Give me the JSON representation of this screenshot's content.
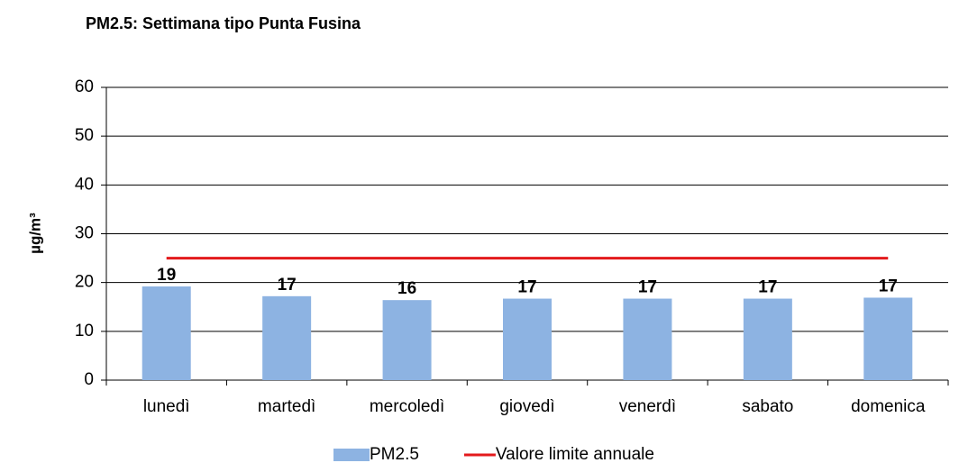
{
  "chart_data": {
    "type": "bar",
    "title": "PM2.5: Settimana tipo Punta Fusina",
    "y_label": "µg/m³",
    "categories": [
      "lunedì",
      "martedì",
      "mercoledì",
      "giovedì",
      "venerdì",
      "sabato",
      "domenica"
    ],
    "series": [
      {
        "name": "PM2.5",
        "type": "bar",
        "color": "#8db3e2",
        "values": [
          19.2,
          17.2,
          16.4,
          16.7,
          16.7,
          16.7,
          16.9
        ],
        "value_labels": [
          "19",
          "17",
          "16",
          "17",
          "17",
          "17",
          "17"
        ]
      },
      {
        "name": "Valore limite annuale",
        "type": "line",
        "color": "#e31a1c",
        "values": [
          25,
          25,
          25,
          25,
          25,
          25,
          25
        ]
      }
    ],
    "ylim": [
      0,
      60
    ],
    "yticks": [
      0,
      10,
      20,
      30,
      40,
      50,
      60
    ],
    "grid": true,
    "legend": "bottom"
  }
}
